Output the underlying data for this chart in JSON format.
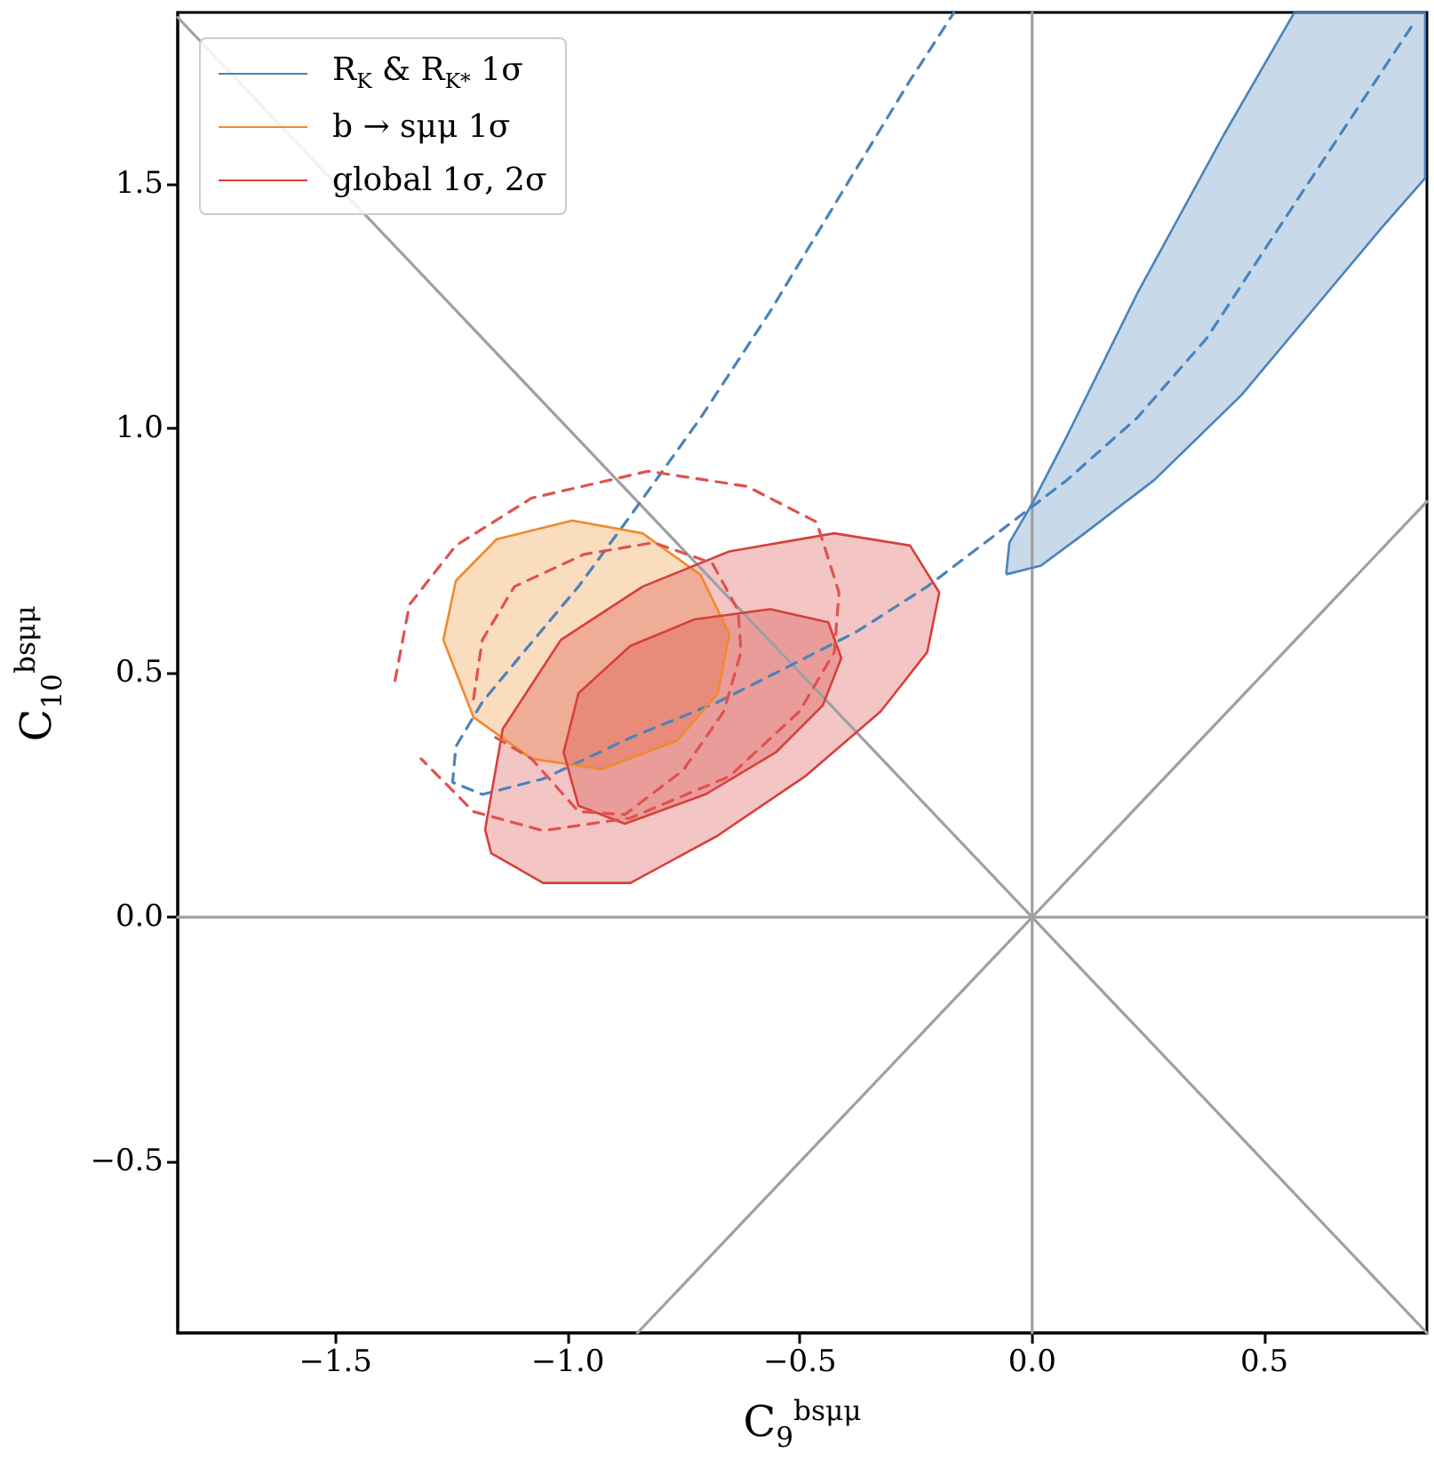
{
  "chart_data": {
    "type": "line",
    "xlabel": "C$_{9}$$^{bsμμ}$",
    "ylabel": "C$_{10}$$^{bsμμ}$",
    "xlim": [
      -1.84,
      0.85
    ],
    "ylim": [
      -0.85,
      1.85
    ],
    "xticks": [
      {
        "value": -1.5,
        "label": "−1.5"
      },
      {
        "value": -1.0,
        "label": "−1.0"
      },
      {
        "value": -0.5,
        "label": "−0.5"
      },
      {
        "value": 0.0,
        "label": "0.0"
      },
      {
        "value": 0.5,
        "label": "0.5"
      }
    ],
    "yticks": [
      {
        "value": -0.5,
        "label": "−0.5"
      },
      {
        "value": 0.0,
        "label": "0.0"
      },
      {
        "value": 0.5,
        "label": "0.5"
      },
      {
        "value": 1.0,
        "label": "1.0"
      },
      {
        "value": 1.5,
        "label": "1.5"
      }
    ],
    "grid": false,
    "legend": "top left",
    "series": [
      {
        "color": "#a0a0a0",
        "x": [
          0,
          0
        ],
        "values": [
          -0.85,
          1.85
        ]
      },
      {
        "color": "#a0a0a0",
        "x": [
          -1.84,
          0.85
        ],
        "values": [
          0,
          0
        ]
      },
      {
        "color": "#a0a0a0",
        "x": [
          -1.84,
          0.85
        ],
        "values": [
          1.84,
          -0.85
        ]
      },
      {
        "color": "#a0a0a0",
        "x": [
          -0.85,
          0.85
        ],
        "values": [
          -0.85,
          0.85
        ]
      },
      {
        "type": "area",
        "name": "R$_{K}$ & R$_{K*}$ 1σ",
        "color": "#4a83bb",
        "x": [
          -0.056,
          -0.049,
          0.0,
          0.075,
          0.226,
          0.414,
          0.564,
          0.846,
          0.846,
          0.752,
          0.602,
          0.451,
          0.263,
          0.113,
          0.019
        ],
        "values": [
          0.701,
          0.766,
          0.846,
          0.984,
          1.275,
          1.602,
          1.849,
          1.849,
          1.511,
          1.409,
          1.239,
          1.068,
          0.894,
          0.785,
          0.719
        ]
      },
      {
        "line_style": "dashed",
        "color": "#4a83bb",
        "x": [
          0.816,
          0.677,
          0.526,
          0.376,
          0.226,
          0.075,
          -0.075,
          -0.226,
          -0.376,
          -0.526,
          -0.677,
          -0.865,
          -1.053,
          -1.184,
          -1.248,
          -1.241,
          -1.184,
          -1.09,
          -0.977,
          -0.865,
          -0.714,
          -0.564,
          -0.414,
          -0.263,
          -0.169
        ],
        "values": [
          1.82,
          1.62,
          1.402,
          1.184,
          1.021,
          0.894,
          0.785,
          0.676,
          0.585,
          0.512,
          0.44,
          0.367,
          0.283,
          0.251,
          0.276,
          0.349,
          0.44,
          0.548,
          0.676,
          0.821,
          1.021,
          1.239,
          1.475,
          1.711,
          1.849
        ]
      },
      {
        "type": "area",
        "name": "b → sμμ 1σ",
        "color": "#f08a2c",
        "x": [
          -1.268,
          -1.241,
          -1.153,
          -0.99,
          -0.839,
          -0.714,
          -0.652,
          -0.677,
          -0.764,
          -0.927,
          -1.078,
          -1.203
        ],
        "values": [
          0.567,
          0.688,
          0.773,
          0.811,
          0.785,
          0.7,
          0.579,
          0.458,
          0.361,
          0.303,
          0.324,
          0.409
        ]
      },
      {
        "type": "area",
        "name": "global 1σ, 2σ",
        "color": "#d6403a",
        "x": [
          -1.178,
          -1.14,
          -1.015,
          -0.839,
          -0.652,
          -0.426,
          -0.263,
          -0.2,
          -0.226,
          -0.326,
          -0.489,
          -0.677,
          -0.865,
          -1.053,
          -1.165
        ],
        "values": [
          0.179,
          0.385,
          0.567,
          0.676,
          0.748,
          0.785,
          0.76,
          0.664,
          0.542,
          0.421,
          0.288,
          0.167,
          0.07,
          0.07,
          0.131
        ]
      },
      {
        "type": "area",
        "color": "#d6403a",
        "x": [
          -1.009,
          -0.977,
          -0.865,
          -0.727,
          -0.564,
          -0.439,
          -0.411,
          -0.451,
          -0.552,
          -0.702,
          -0.877,
          -0.977
        ],
        "values": [
          0.337,
          0.458,
          0.555,
          0.609,
          0.63,
          0.603,
          0.53,
          0.433,
          0.337,
          0.252,
          0.191,
          0.228
        ]
      },
      {
        "line_style": "dashed",
        "color": "#e0524c",
        "x": [
          -1.372,
          -1.341,
          -1.241,
          -1.078,
          -0.827,
          -0.614,
          -0.464,
          -0.416,
          -0.426,
          -0.501,
          -0.652,
          -0.865,
          -1.053,
          -1.203,
          -1.316
        ],
        "values": [
          0.484,
          0.639,
          0.76,
          0.857,
          0.912,
          0.881,
          0.808,
          0.664,
          0.542,
          0.421,
          0.288,
          0.203,
          0.177,
          0.216,
          0.324
        ]
      },
      {
        "line_style": "dashed",
        "color": "#e0524c",
        "x": [
          -1.203,
          -1.184,
          -1.115,
          -0.965,
          -0.815,
          -0.689,
          -0.633,
          -0.627,
          -0.664,
          -0.752,
          -0.877,
          -0.977,
          -1.078,
          -1.165
        ],
        "values": [
          0.446,
          0.567,
          0.676,
          0.742,
          0.766,
          0.724,
          0.627,
          0.542,
          0.421,
          0.3,
          0.21,
          0.216,
          0.324,
          0.373
        ]
      }
    ]
  }
}
